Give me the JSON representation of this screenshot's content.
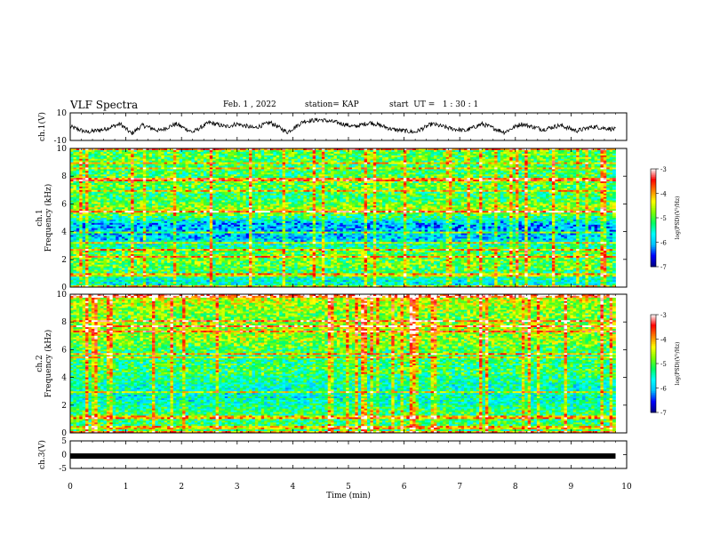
{
  "header": {
    "title": "VLF Spectra",
    "date": "Feb. 1 , 2022",
    "station": "station= KAP",
    "start": "start  UT =   1 : 30 : 1"
  },
  "chart_data": [
    {
      "type": "line",
      "name": "ch1-waveform",
      "ylabel": "ch.1(V)",
      "ylim": [
        -10,
        10
      ],
      "yticks": [
        "10",
        "-10"
      ],
      "xlim": [
        0,
        10
      ],
      "x_end": 9.8,
      "approx_envelope": [
        [
          0.0,
          0
        ],
        [
          0.3,
          -4
        ],
        [
          0.6,
          -2
        ],
        [
          0.9,
          2
        ],
        [
          1.1,
          -5
        ],
        [
          1.3,
          1
        ],
        [
          1.6,
          -3
        ],
        [
          1.9,
          2
        ],
        [
          2.2,
          -4
        ],
        [
          2.5,
          3
        ],
        [
          2.8,
          0
        ],
        [
          3.0,
          2
        ],
        [
          3.3,
          -1
        ],
        [
          3.6,
          3
        ],
        [
          3.9,
          -4
        ],
        [
          4.2,
          4
        ],
        [
          4.5,
          5
        ],
        [
          4.8,
          3
        ],
        [
          5.1,
          0
        ],
        [
          5.4,
          3
        ],
        [
          5.8,
          -2
        ],
        [
          6.2,
          -4
        ],
        [
          6.5,
          2
        ],
        [
          6.8,
          -1
        ],
        [
          7.1,
          -3
        ],
        [
          7.4,
          2
        ],
        [
          7.8,
          -4
        ],
        [
          8.1,
          2
        ],
        [
          8.5,
          -2
        ],
        [
          8.8,
          1
        ],
        [
          9.1,
          -3
        ],
        [
          9.4,
          0
        ],
        [
          9.8,
          -2
        ]
      ]
    },
    {
      "type": "heatmap",
      "name": "ch1-spectrogram",
      "ylabel": "ch.1\nFrequency (kHz)",
      "ylim": [
        0,
        10
      ],
      "yticks": [
        "0",
        "2",
        "4",
        "6",
        "8",
        "10"
      ],
      "xlim": [
        0,
        10
      ],
      "data_x_end": 9.8,
      "colorbar": {
        "label": "log(PSD)(V²/Hz)",
        "range": [
          -7,
          -3
        ],
        "ticks": [
          "-3",
          "-4",
          "-5",
          "-6",
          "-7"
        ]
      },
      "approx_level_by_freq_khz": [
        [
          0.5,
          -5.6
        ],
        [
          1.5,
          -4.9
        ],
        [
          2.5,
          -5.0
        ],
        [
          3.5,
          -5.9
        ],
        [
          4.5,
          -6.1
        ],
        [
          5.5,
          -4.6
        ],
        [
          6.5,
          -5.2
        ],
        [
          7.5,
          -4.9
        ],
        [
          8.5,
          -5.2
        ],
        [
          9.5,
          -5.0
        ]
      ]
    },
    {
      "type": "heatmap",
      "name": "ch2-spectrogram",
      "ylabel": "ch.2\nFrequency (kHz)",
      "ylim": [
        0,
        10
      ],
      "yticks": [
        "0",
        "2",
        "4",
        "6",
        "8",
        "10"
      ],
      "xlim": [
        0,
        10
      ],
      "data_x_end": 9.8,
      "colorbar": {
        "label": "log(PSD)(V²/Hz)",
        "range": [
          -7,
          -3
        ],
        "ticks": [
          "-3",
          "-4",
          "-5",
          "-6",
          "-7"
        ]
      },
      "approx_level_by_freq_khz": [
        [
          0.5,
          -5.2
        ],
        [
          1.5,
          -5.2
        ],
        [
          2.5,
          -5.6
        ],
        [
          3.5,
          -5.5
        ],
        [
          4.5,
          -5.1
        ],
        [
          5.5,
          -5.3
        ],
        [
          6.5,
          -4.8
        ],
        [
          7.5,
          -4.6
        ],
        [
          8.5,
          -4.9
        ],
        [
          9.5,
          -4.5
        ]
      ]
    },
    {
      "type": "line",
      "name": "ch3-waveform",
      "ylabel": "ch.3(V)",
      "ylim": [
        -5,
        5
      ],
      "yticks": [
        "5",
        "0",
        "-5"
      ],
      "xlim": [
        0,
        10
      ],
      "x_end": 9.8,
      "approx_value": -0.5
    }
  ],
  "x_axis": {
    "label": "Time  (min)",
    "ticks": [
      "0",
      "1",
      "2",
      "3",
      "4",
      "5",
      "6",
      "7",
      "8",
      "9",
      "10"
    ]
  },
  "colors": {
    "axis": "#000000",
    "colormap": [
      "#000080",
      "#0000ff",
      "#00c0ff",
      "#00ffff",
      "#00ff60",
      "#80ff00",
      "#ffff00",
      "#ff8000",
      "#ff0000",
      "#ffffff"
    ]
  }
}
